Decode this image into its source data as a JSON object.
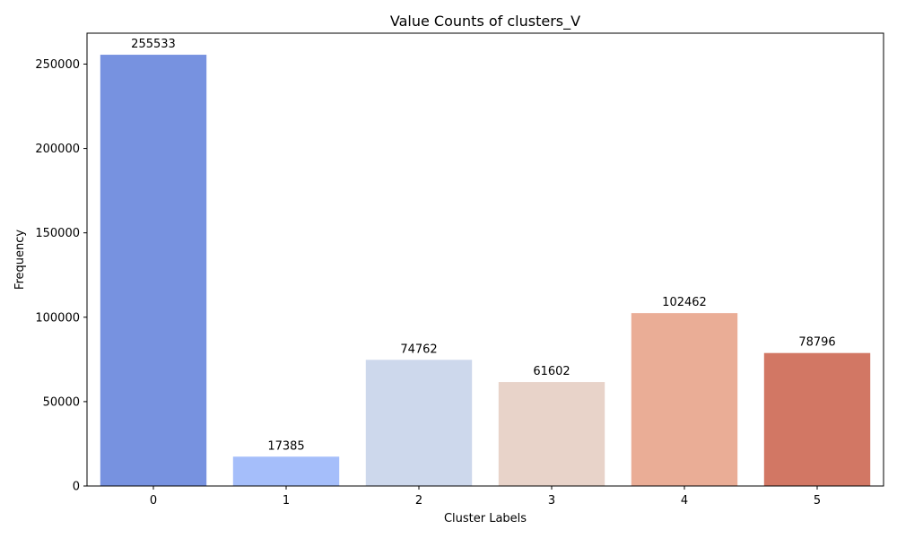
{
  "chart_data": {
    "type": "bar",
    "title": "Value Counts of clusters_V",
    "xlabel": "Cluster Labels",
    "ylabel": "Frequency",
    "categories": [
      "0",
      "1",
      "2",
      "3",
      "4",
      "5"
    ],
    "values": [
      255533,
      17385,
      74762,
      61602,
      102462,
      78796
    ],
    "data_labels": [
      "255533",
      "17385",
      "74762",
      "61602",
      "102462",
      "78796"
    ],
    "colors": [
      "#7792e0",
      "#a5befa",
      "#cdd8ec",
      "#e8d3c9",
      "#eaad96",
      "#d27764"
    ],
    "ylim": [
      0,
      268310
    ],
    "yticks": [
      0,
      50000,
      100000,
      150000,
      200000,
      250000
    ],
    "ytick_labels": [
      "0",
      "50000",
      "100000",
      "150000",
      "200000",
      "250000"
    ],
    "grid": false,
    "legend": "none"
  }
}
